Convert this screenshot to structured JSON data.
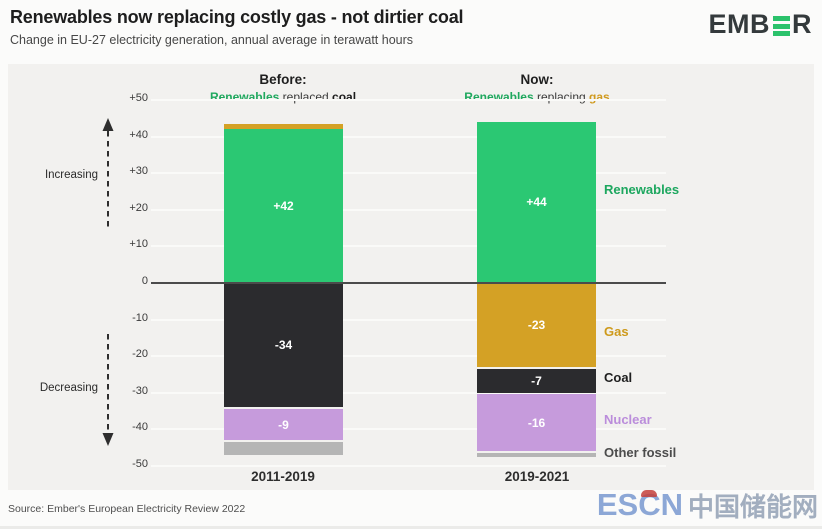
{
  "header": {
    "title": "Renewables now replacing costly gas - not dirtier coal",
    "subtitle": "Change in EU-27 electricity generation, annual average in terawatt hours",
    "logo": {
      "prefix": "EMB",
      "suffix": "R"
    }
  },
  "panel_headers": {
    "before": {
      "title": "Before:",
      "parts": [
        {
          "text": "Renewables"
        },
        {
          "text": " replaced "
        },
        {
          "text": "coal"
        }
      ]
    },
    "now": {
      "title": "Now:",
      "parts": [
        {
          "text": "Renewables"
        },
        {
          "text": " replacing "
        },
        {
          "text": "gas"
        }
      ]
    }
  },
  "axis": {
    "increasing_label": "Increasing",
    "decreasing_label": "Decreasing",
    "unit_ticks": [
      {
        "label": "+50",
        "value": 50
      },
      {
        "label": "+40",
        "value": 40
      },
      {
        "label": "+30",
        "value": 30
      },
      {
        "label": "+20",
        "value": 20
      },
      {
        "label": "+10",
        "value": 10
      },
      {
        "label": "0",
        "value": 0
      },
      {
        "label": "-10",
        "value": -10
      },
      {
        "label": "-20",
        "value": -20
      },
      {
        "label": "-30",
        "value": -30
      },
      {
        "label": "-40",
        "value": -40
      },
      {
        "label": "-50",
        "value": -50
      }
    ]
  },
  "chart_data": {
    "type": "bar",
    "stacked": true,
    "title": "Renewables now replacing costly gas - not dirtier coal",
    "subtitle": "Change in EU-27 electricity generation, annual average in terawatt hours",
    "unit": "terawatt hours",
    "ylim": [
      -50,
      50
    ],
    "grid": true,
    "legend_position": "right",
    "categories": [
      "2011-2019",
      "2019-2021"
    ],
    "series": [
      {
        "name": "Gas",
        "color": "#D4A125",
        "label_color": "#CE9A1B",
        "values": [
          1.5,
          -23
        ]
      },
      {
        "name": "Renewables",
        "color": "#2BC873",
        "label_color": "#1DA75F",
        "values": [
          42,
          44
        ]
      },
      {
        "name": "Coal",
        "color": "#2B2B2E",
        "label_color": "#1F1F1F",
        "values": [
          -34,
          -7
        ]
      },
      {
        "name": "Nuclear",
        "color": "#C69BDC",
        "label_color": "#BB8DDB",
        "values": [
          -9,
          -16
        ]
      },
      {
        "name": "Other fossil",
        "color": "#B5B5B5",
        "label_color": "#4C4C4C",
        "values": [
          -4,
          -1.5
        ]
      }
    ],
    "shown_value_labels": {
      "2011-2019": [
        "+42",
        "-34",
        "-9"
      ],
      "2019-2021": [
        "+44",
        "-23",
        "-7",
        "-16"
      ]
    }
  },
  "footer": {
    "source": "Source: Ember's European Electricity Review 2022",
    "watermark": {
      "latin_pre": "ES",
      "latin_c": "C",
      "latin_post": "N",
      "cjk": "中国储能网"
    }
  }
}
